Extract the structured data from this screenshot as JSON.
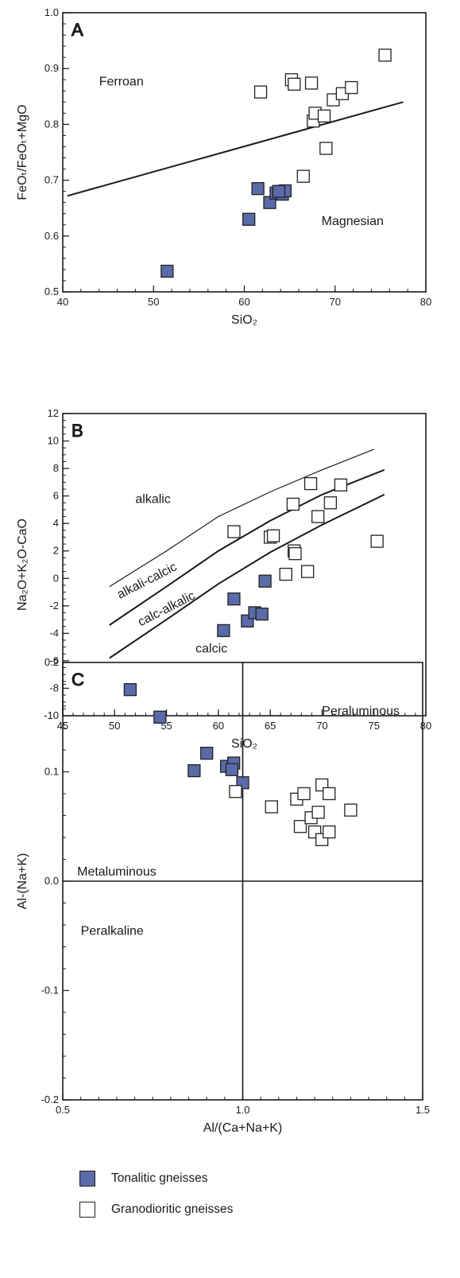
{
  "colors": {
    "tonalitic": "#5b6aa8",
    "granodioritic": "#ffffff",
    "axis": "#1a1a1a"
  },
  "legend": {
    "items": [
      {
        "label": "Tonalitic gneisses",
        "color": "#5b6aa8"
      },
      {
        "label": "Granodioritic gneisses",
        "color": "#ffffff"
      }
    ]
  },
  "chart_data": [
    {
      "type": "scatter",
      "panel": "A",
      "xlabel": "SiO₂",
      "ylabel": "FeOₜ/FeOₜ+MgO",
      "xlim": [
        40,
        80
      ],
      "ylim": [
        0.5,
        1.0
      ],
      "xticks": [
        40,
        50,
        60,
        70,
        80
      ],
      "yticks": [
        0.5,
        0.6,
        0.7,
        0.8,
        0.9,
        1.0
      ],
      "lines": [
        [
          [
            40.5,
            0.672
          ],
          [
            77.5,
            0.84
          ]
        ]
      ],
      "regions": [
        {
          "text": "Ferroan",
          "x": 44,
          "y": 0.87
        },
        {
          "text": "Magnesian",
          "x": 68.5,
          "y": 0.62
        }
      ],
      "series": [
        {
          "name": "Tonalitic gneisses",
          "points": [
            [
              51.5,
              0.537
            ],
            [
              60.5,
              0.63
            ],
            [
              61.5,
              0.685
            ],
            [
              62.8,
              0.66
            ],
            [
              63.5,
              0.677
            ],
            [
              64.2,
              0.675
            ],
            [
              64.5,
              0.681
            ],
            [
              63.8,
              0.68
            ]
          ]
        },
        {
          "name": "Granodioritic gneisses",
          "points": [
            [
              61.8,
              0.858
            ],
            [
              65.2,
              0.88
            ],
            [
              65.5,
              0.872
            ],
            [
              67.4,
              0.874
            ],
            [
              67.6,
              0.806
            ],
            [
              67.8,
              0.82
            ],
            [
              68.8,
              0.815
            ],
            [
              69.8,
              0.844
            ],
            [
              70.8,
              0.855
            ],
            [
              71.8,
              0.866
            ],
            [
              75.5,
              0.924
            ],
            [
              69.0,
              0.757
            ],
            [
              66.5,
              0.707
            ]
          ]
        }
      ]
    },
    {
      "type": "scatter",
      "panel": "B",
      "xlabel": "SiO₂",
      "ylabel": "Na₂O+K₂O-CaO",
      "xlim": [
        45,
        80
      ],
      "ylim": [
        -10,
        12
      ],
      "xticks": [
        45,
        50,
        55,
        60,
        65,
        70,
        75,
        80
      ],
      "yticks": [
        -10,
        -8,
        -6,
        -4,
        -2,
        0,
        2,
        4,
        6,
        8,
        10,
        12
      ],
      "lines": [
        [
          [
            49.5,
            -0.6
          ],
          [
            55,
            2
          ],
          [
            60,
            4.5
          ],
          [
            65,
            6.3
          ],
          [
            70,
            7.9
          ],
          [
            75,
            9.4
          ]
        ],
        [
          [
            49.5,
            -3.4
          ],
          [
            55,
            -0.6
          ],
          [
            60,
            2
          ],
          [
            65,
            4.2
          ],
          [
            70,
            6.1
          ],
          [
            76,
            7.9
          ]
        ],
        [
          [
            49.5,
            -5.8
          ],
          [
            55,
            -3
          ],
          [
            60,
            -0.4
          ],
          [
            65,
            1.9
          ],
          [
            70,
            3.9
          ],
          [
            76,
            6.1
          ]
        ]
      ],
      "regions": [
        {
          "text": "alkalic",
          "x": 52,
          "y": 5.5
        },
        {
          "text": "alkali-calcic",
          "x": 50.5,
          "y": -1.5
        },
        {
          "text": "calc-alkalic",
          "x": 52.5,
          "y": -3.5
        },
        {
          "text": "calcic",
          "x": 57.8,
          "y": -5.4
        }
      ],
      "series": [
        {
          "name": "Tonalitic gneisses",
          "points": [
            [
              51.5,
              -8.1
            ],
            [
              60.5,
              -3.8
            ],
            [
              61.5,
              -1.5
            ],
            [
              62.8,
              -3.1
            ],
            [
              63.5,
              -2.5
            ],
            [
              64.2,
              -2.6
            ],
            [
              64.5,
              -0.2
            ]
          ]
        },
        {
          "name": "Granodioritic gneisses",
          "points": [
            [
              61.5,
              3.4
            ],
            [
              65,
              3.0
            ],
            [
              65.3,
              3.1
            ],
            [
              66.5,
              0.3
            ],
            [
              67.2,
              5.4
            ],
            [
              67.3,
              2.0
            ],
            [
              67.4,
              1.8
            ],
            [
              68.6,
              0.5
            ],
            [
              68.9,
              6.9
            ],
            [
              69.6,
              4.5
            ],
            [
              70.8,
              5.5
            ],
            [
              71.8,
              6.8
            ],
            [
              75.3,
              2.7
            ]
          ]
        }
      ]
    },
    {
      "type": "scatter",
      "panel": "C",
      "xlabel": "Al/(Ca+Na+K)",
      "ylabel": "Al-(Na+K)",
      "xlim": [
        0.5,
        1.5
      ],
      "ylim": [
        -0.2,
        0.2
      ],
      "xticks": [
        0.5,
        1.0,
        1.5
      ],
      "xticklabels": [
        "0.5",
        "1.0",
        "1.5"
      ],
      "yticks": [
        -0.2,
        -0.1,
        0.0,
        0.1,
        0.2
      ],
      "yticklabels": [
        "-0.2",
        "-0.1",
        "0.0",
        "0.1",
        "0.2"
      ],
      "lines": [
        [
          [
            0.5,
            0.0
          ],
          [
            1.5,
            0.0
          ]
        ],
        [
          [
            1.0,
            -0.2
          ],
          [
            1.0,
            0.2
          ]
        ]
      ],
      "regions": [
        {
          "text": "Peraluminous",
          "x": 1.22,
          "y": 0.152
        },
        {
          "text": "Metaluminous",
          "x": 0.54,
          "y": 0.005
        },
        {
          "text": "Peralkaline",
          "x": 0.55,
          "y": -0.049
        }
      ],
      "series": [
        {
          "name": "Tonalitic gneisses",
          "points": [
            [
              0.77,
              0.15
            ],
            [
              0.865,
              0.101
            ],
            [
              0.9,
              0.117
            ],
            [
              0.955,
              0.105
            ],
            [
              0.975,
              0.108
            ],
            [
              1.0,
              0.09
            ],
            [
              0.97,
              0.102
            ]
          ]
        },
        {
          "name": "Granodioritic gneisses",
          "points": [
            [
              0.98,
              0.082
            ],
            [
              1.08,
              0.068
            ],
            [
              1.15,
              0.075
            ],
            [
              1.17,
              0.08
            ],
            [
              1.16,
              0.05
            ],
            [
              1.19,
              0.058
            ],
            [
              1.2,
              0.045
            ],
            [
              1.21,
              0.063
            ],
            [
              1.22,
              0.088
            ],
            [
              1.22,
              0.038
            ],
            [
              1.24,
              0.08
            ],
            [
              1.24,
              0.045
            ],
            [
              1.3,
              0.065
            ]
          ]
        }
      ]
    }
  ]
}
